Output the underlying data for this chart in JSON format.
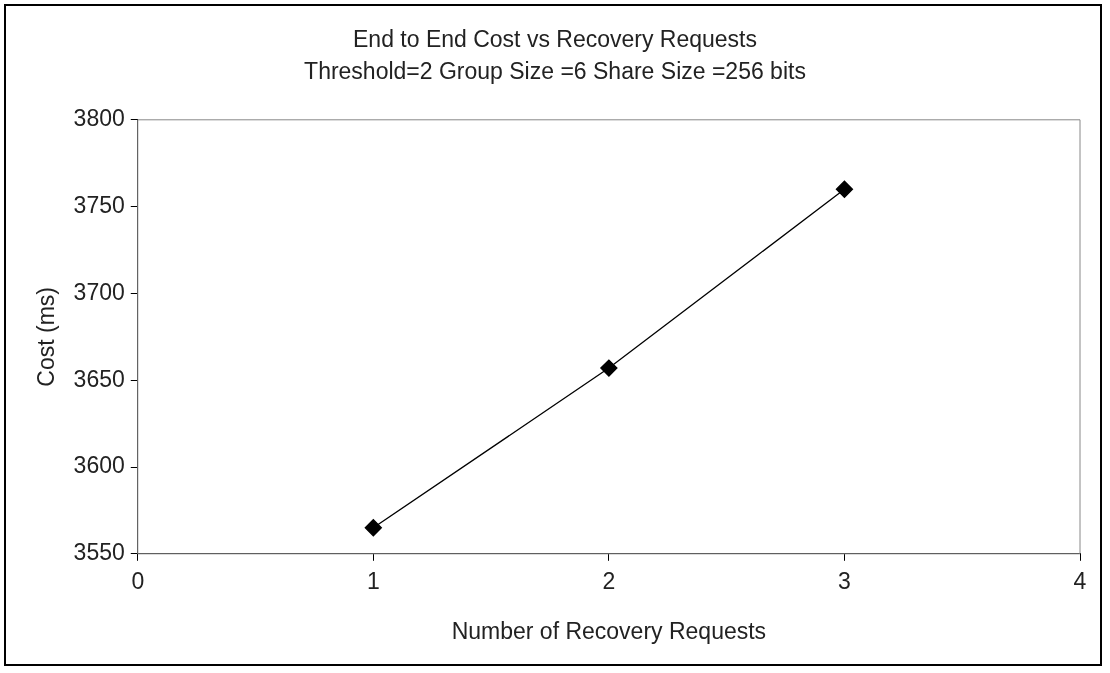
{
  "chart_data": {
    "type": "line",
    "title": "End to End Cost vs Recovery Requests",
    "subtitle": "Threshold=2 Group Size =6 Share Size =256 bits",
    "xlabel": "Number of Recovery Requests",
    "ylabel": "Cost (ms)",
    "x": [
      1,
      2,
      3
    ],
    "series": [
      {
        "color": "#000000",
        "values": [
          3565,
          3657,
          3760
        ]
      }
    ],
    "xlim": [
      0,
      4
    ],
    "xticks": [
      0,
      1,
      2,
      3,
      4
    ],
    "ylim": [
      3550,
      3800
    ],
    "yticks": [
      3550,
      3600,
      3650,
      3700,
      3750,
      3800
    ],
    "grid": false,
    "legend": false,
    "marker": "diamond",
    "line_style": "solid"
  }
}
